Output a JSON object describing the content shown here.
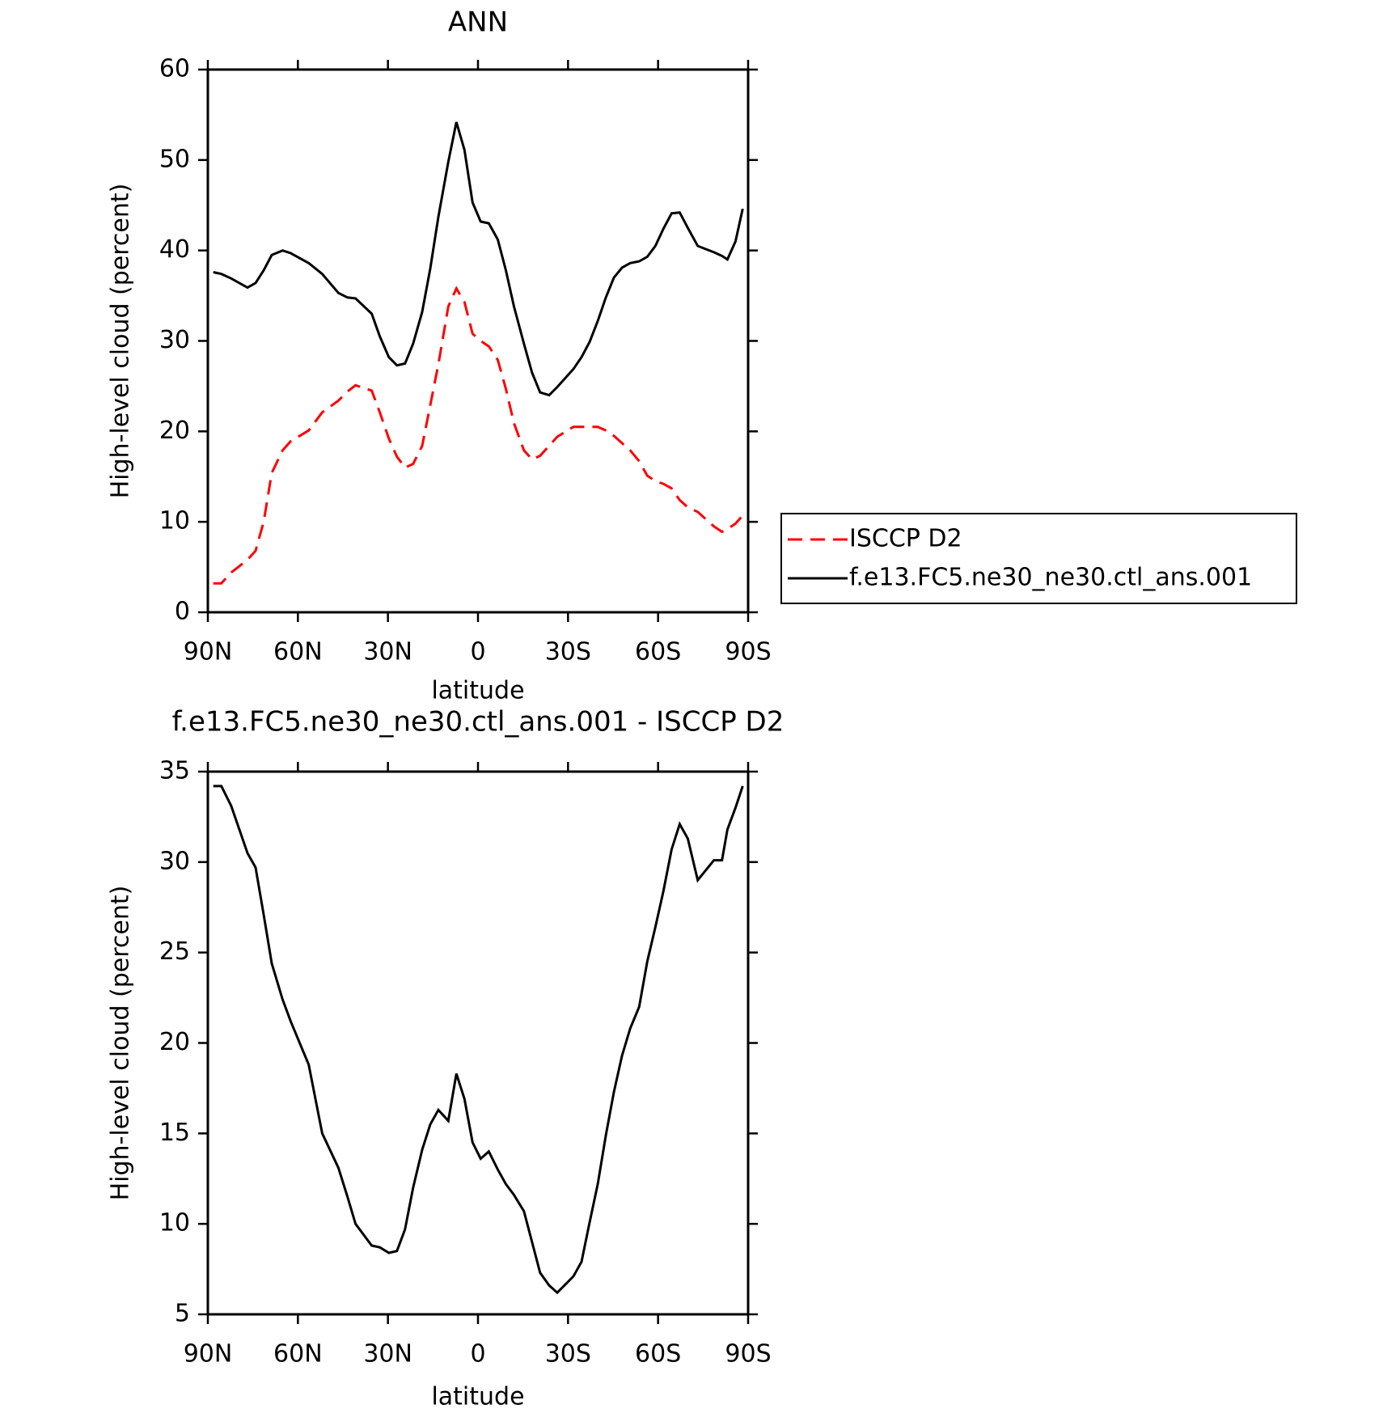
{
  "chart_data": [
    {
      "type": "line",
      "title": "ANN",
      "xlabel": "latitude",
      "ylabel": "High-level cloud (percent)",
      "x": [
        88.2,
        85.5,
        82.2,
        76.8,
        74.1,
        71.4,
        68.7,
        65.1,
        62.4,
        56.4,
        51.9,
        46.5,
        43.5,
        40.8,
        35.4,
        32.7,
        29.7,
        27.0,
        24.3,
        21.6,
        18.6,
        15.9,
        13.2,
        9.9,
        7.2,
        4.5,
        1.8,
        -0.9,
        -3.6,
        -6.6,
        -9.3,
        -12.0,
        -15.3,
        -18.0,
        -20.7,
        -23.7,
        -26.4,
        -31.8,
        -34.5,
        -37.2,
        -39.9,
        -42.6,
        -45.3,
        -48.0,
        -50.7,
        -53.7,
        -56.4,
        -59.1,
        -61.8,
        -64.5,
        -67.2,
        -69.9,
        -73.2,
        -78.6,
        -81.3,
        -83.1,
        -85.8,
        -88.2
      ],
      "series": [
        {
          "name": "ISCCP D2",
          "color": "#ff0000",
          "dashed": true,
          "values": [
            3.2,
            3.2,
            4.4,
            5.8,
            6.8,
            10.0,
            15.4,
            17.9,
            18.9,
            20.1,
            22.1,
            23.4,
            24.4,
            25.1,
            24.5,
            22.1,
            19.2,
            17.2,
            16.0,
            16.4,
            18.4,
            22.9,
            27.4,
            33.8,
            35.8,
            34.3,
            30.8,
            30.0,
            29.4,
            27.9,
            24.7,
            20.9,
            17.9,
            16.9,
            17.3,
            18.4,
            19.4,
            20.5,
            20.5,
            20.5,
            20.5,
            20.1,
            19.5,
            18.7,
            17.9,
            16.7,
            15.1,
            14.5,
            14.2,
            13.7,
            12.4,
            11.6,
            11.1,
            9.5,
            8.9,
            9.2,
            9.8,
            10.7
          ]
        },
        {
          "name": "f.e13.FC5.ne30_ne30.ctl_ans.001",
          "color": "#000000",
          "dashed": false,
          "values": [
            37.6,
            37.4,
            36.9,
            35.9,
            36.4,
            37.8,
            39.5,
            40.0,
            39.7,
            38.6,
            37.4,
            35.3,
            34.8,
            34.7,
            33.0,
            30.5,
            28.2,
            27.3,
            27.5,
            29.7,
            33.2,
            38.0,
            43.7,
            49.8,
            54.2,
            51.1,
            45.3,
            43.2,
            43.0,
            41.2,
            37.8,
            33.8,
            29.7,
            26.5,
            24.3,
            24.0,
            24.9,
            26.9,
            28.2,
            29.9,
            32.2,
            34.8,
            37.0,
            38.1,
            38.6,
            38.8,
            39.3,
            40.5,
            42.4,
            44.1,
            44.2,
            42.5,
            40.5,
            39.8,
            39.4,
            39.0,
            41.0,
            44.6
          ]
        }
      ],
      "xlim": [
        90,
        -90
      ],
      "xticks": [
        {
          "value": 90,
          "label": "90N"
        },
        {
          "value": 60,
          "label": "60N"
        },
        {
          "value": 30,
          "label": "30N"
        },
        0,
        {
          "value": -30,
          "label": "30S"
        },
        {
          "value": -60,
          "label": "60S"
        },
        {
          "value": -90,
          "label": "90S"
        }
      ],
      "ylim": [
        0,
        60
      ],
      "yticks": [
        0,
        10,
        20,
        30,
        40,
        50,
        60
      ],
      "legend": "right"
    },
    {
      "type": "line",
      "title": "f.e13.FC5.ne30_ne30.ctl_ans.001 - ISCCP D2",
      "xlabel": "latitude",
      "ylabel": "High-level cloud (percent)",
      "x": [
        88.2,
        85.5,
        82.2,
        76.8,
        74.1,
        71.4,
        68.7,
        65.1,
        62.4,
        56.4,
        51.9,
        46.5,
        43.5,
        40.8,
        35.4,
        32.7,
        29.7,
        27.0,
        24.3,
        21.6,
        18.6,
        15.9,
        13.2,
        9.9,
        7.2,
        4.5,
        1.8,
        -0.9,
        -3.6,
        -6.6,
        -9.3,
        -12.0,
        -15.3,
        -18.0,
        -20.7,
        -23.7,
        -26.4,
        -31.8,
        -34.5,
        -37.2,
        -39.9,
        -42.6,
        -45.3,
        -48.0,
        -50.7,
        -53.7,
        -56.4,
        -59.1,
        -61.8,
        -64.5,
        -67.2,
        -69.9,
        -73.2,
        -78.6,
        -81.3,
        -83.1,
        -85.8,
        -88.2
      ],
      "series": [
        {
          "color": "#000000",
          "dashed": false,
          "values": [
            34.2,
            34.2,
            33.1,
            30.5,
            29.7,
            27.1,
            24.4,
            22.4,
            21.2,
            18.8,
            15.0,
            13.1,
            11.5,
            10.0,
            8.8,
            8.7,
            8.4,
            8.5,
            9.7,
            12.0,
            14.1,
            15.5,
            16.3,
            15.7,
            18.3,
            16.9,
            14.5,
            13.6,
            14.0,
            13.0,
            12.2,
            11.6,
            10.7,
            9.0,
            7.3,
            6.6,
            6.2,
            7.1,
            7.9,
            10.1,
            12.2,
            14.9,
            17.3,
            19.3,
            20.8,
            22.0,
            24.5,
            26.4,
            28.4,
            30.7,
            32.1,
            31.3,
            29.0,
            30.1,
            30.1,
            31.8,
            33.0,
            34.2
          ]
        }
      ],
      "xlim": [
        90,
        -90
      ],
      "xticks": [
        {
          "value": 90,
          "label": "90N"
        },
        {
          "value": 60,
          "label": "60N"
        },
        {
          "value": 30,
          "label": "30N"
        },
        0,
        {
          "value": -30,
          "label": "30S"
        },
        {
          "value": -60,
          "label": "60S"
        },
        {
          "value": -90,
          "label": "90S"
        }
      ],
      "ylim": [
        5,
        35
      ],
      "yticks": [
        5,
        10,
        15,
        20,
        25,
        30,
        35
      ]
    }
  ]
}
